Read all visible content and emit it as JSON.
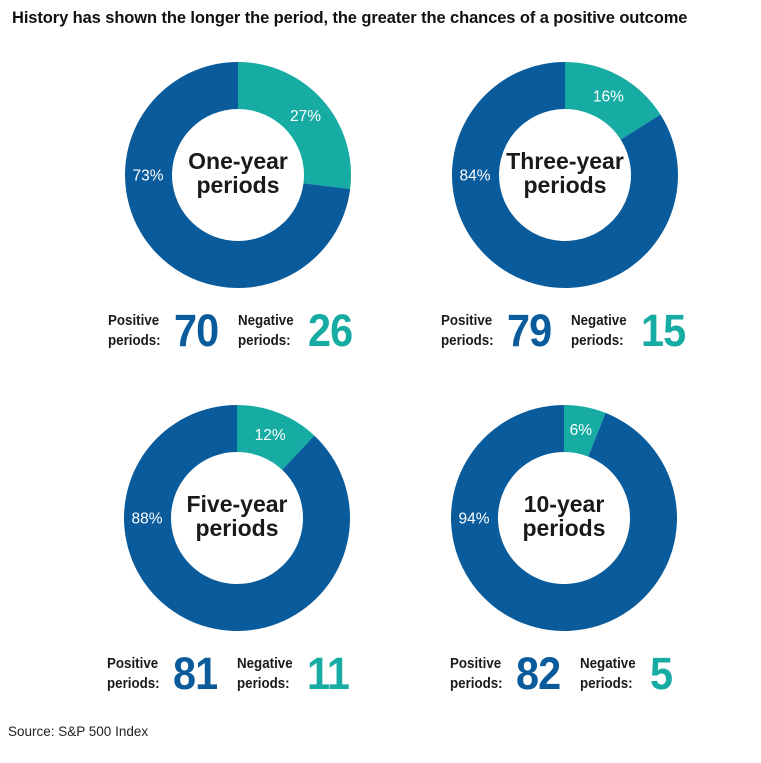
{
  "title": "History has shown the longer the period, the greater the chances of a positive outcome",
  "source": "Source: S&P 500 Index",
  "colors": {
    "positive": "#0a5b9b",
    "negative": "#16aca3"
  },
  "labels": {
    "positive_line1": "Positive",
    "negative_line1": "Negative",
    "line2": "periods:"
  },
  "chart_data": [
    {
      "type": "pie",
      "center_label": [
        "One-year",
        "periods"
      ],
      "slices": [
        {
          "label": "73%",
          "value": 73,
          "color": "#0a5b9b"
        },
        {
          "label": "27%",
          "value": 27,
          "color": "#16aca3"
        }
      ],
      "positive_periods": "70",
      "negative_periods": "26"
    },
    {
      "type": "pie",
      "center_label": [
        "Three-year",
        "periods"
      ],
      "slices": [
        {
          "label": "84%",
          "value": 84,
          "color": "#0a5b9b"
        },
        {
          "label": "16%",
          "value": 16,
          "color": "#16aca3"
        }
      ],
      "positive_periods": "79",
      "negative_periods": "15"
    },
    {
      "type": "pie",
      "center_label": [
        "Five-year",
        "periods"
      ],
      "slices": [
        {
          "label": "88%",
          "value": 88,
          "color": "#0a5b9b"
        },
        {
          "label": "12%",
          "value": 12,
          "color": "#16aca3"
        }
      ],
      "positive_periods": "81",
      "negative_periods": "11"
    },
    {
      "type": "pie",
      "center_label": [
        "10-year",
        "periods"
      ],
      "slices": [
        {
          "label": "94%",
          "value": 94,
          "color": "#0a5b9b"
        },
        {
          "label": "6%",
          "value": 6,
          "color": "#16aca3"
        }
      ],
      "positive_periods": "82",
      "negative_periods": "5"
    }
  ]
}
